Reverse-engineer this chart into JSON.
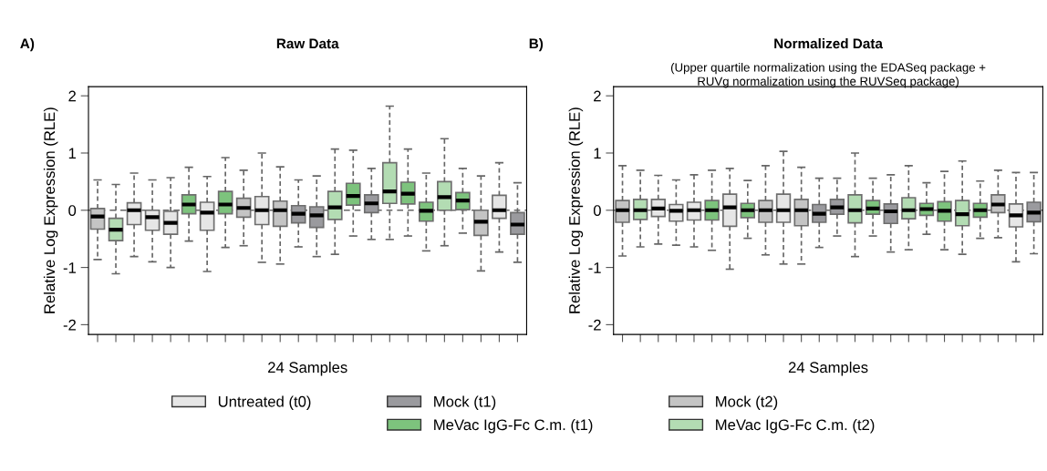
{
  "chart_data": [
    {
      "type": "box",
      "title": "Raw Data",
      "xlabel": "24 Samples",
      "ylabel": "Relative Log Expression (RLE)",
      "annotations": [
        "A)"
      ],
      "categories": [
        null,
        null,
        null,
        null,
        null,
        null,
        null,
        null,
        null,
        null,
        null,
        null,
        null,
        null,
        null,
        null,
        null,
        null,
        null,
        null,
        null,
        null,
        null,
        null
      ],
      "ylim": [
        -2.17,
        2.16
      ],
      "yticks": [
        -2,
        -1,
        0,
        1,
        2
      ],
      "grid": false,
      "legend": "bottom",
      "ref_lines": [
        {
          "axis": "y",
          "value": 0,
          "color": "#666666",
          "line_style": "dashed"
        }
      ],
      "series": [
        {
          "name": "Untreated (t0)",
          "color": "#e6e6e6",
          "boxes": [
            null,
            null,
            {
              "low": -0.81,
              "q1": -0.25,
              "median": 0,
              "q3": 0.13,
              "high": 0.65
            },
            {
              "low": -0.9,
              "q1": -0.35,
              "median": -0.12,
              "q3": 0,
              "high": 0.53
            },
            {
              "low": -1.0,
              "q1": -0.42,
              "median": -0.22,
              "q3": -0.02,
              "high": 0.57
            },
            null,
            {
              "low": -1.07,
              "q1": -0.35,
              "median": -0.04,
              "q3": 0.14,
              "high": 0.59
            },
            null,
            null,
            {
              "low": -0.91,
              "q1": -0.25,
              "median": 0,
              "q3": 0.24,
              "high": 1.0
            },
            null,
            null,
            null,
            null,
            null,
            null,
            null,
            null,
            null,
            null,
            null,
            null,
            {
              "low": -0.73,
              "q1": -0.14,
              "median": 0,
              "q3": 0.26,
              "high": 0.83
            },
            null
          ]
        },
        {
          "name": "Mock (t1)",
          "color": "#9a9a9e",
          "boxes": [
            null,
            null,
            null,
            null,
            null,
            null,
            null,
            null,
            null,
            null,
            null,
            {
              "low": -0.64,
              "q1": -0.22,
              "median": -0.06,
              "q3": 0.08,
              "high": 0.53
            },
            {
              "low": -0.81,
              "q1": -0.3,
              "median": -0.09,
              "q3": 0.06,
              "high": 0.6
            },
            null,
            null,
            {
              "low": -0.51,
              "q1": -0.04,
              "median": 0.12,
              "q3": 0.27,
              "high": 0.73
            },
            null,
            null,
            null,
            null,
            null,
            null,
            null,
            {
              "low": -0.91,
              "q1": -0.42,
              "median": -0.25,
              "q3": -0.04,
              "high": 0.48
            }
          ]
        },
        {
          "name": "Mock (t2)",
          "color": "#c4c4c4",
          "boxes": [
            {
              "low": -0.86,
              "q1": -0.33,
              "median": -0.11,
              "q3": 0.03,
              "high": 0.53
            },
            null,
            null,
            null,
            null,
            null,
            null,
            null,
            {
              "low": -0.62,
              "q1": -0.12,
              "median": 0.04,
              "q3": 0.21,
              "high": 0.7
            },
            null,
            {
              "low": -0.94,
              "q1": -0.28,
              "median": 0,
              "q3": 0.16,
              "high": 0.76
            },
            null,
            null,
            null,
            null,
            null,
            null,
            null,
            null,
            null,
            null,
            {
              "low": -1.06,
              "q1": -0.44,
              "median": -0.2,
              "q3": 0,
              "high": 0.6
            },
            null,
            null
          ]
        },
        {
          "name": "MeVac IgG-Fc C.m. (t1)",
          "color": "#7dc37d",
          "boxes": [
            null,
            null,
            null,
            null,
            null,
            {
              "low": -0.54,
              "q1": -0.06,
              "median": 0.1,
              "q3": 0.27,
              "high": 0.75
            },
            null,
            {
              "low": -0.65,
              "q1": -0.06,
              "median": 0.1,
              "q3": 0.33,
              "high": 0.92
            },
            null,
            null,
            null,
            null,
            null,
            null,
            {
              "low": -0.45,
              "q1": 0.09,
              "median": 0.25,
              "q3": 0.47,
              "high": 1.05
            },
            null,
            null,
            {
              "low": -0.45,
              "q1": 0.11,
              "median": 0.29,
              "q3": 0.49,
              "high": 1.07
            },
            {
              "low": -0.71,
              "q1": -0.19,
              "median": -0.01,
              "q3": 0.14,
              "high": 0.65
            },
            null,
            {
              "low": -0.4,
              "q1": 0.01,
              "median": 0.17,
              "q3": 0.31,
              "high": 0.73
            },
            null,
            null,
            null
          ]
        },
        {
          "name": "MeVac IgG-Fc C.m. (t2)",
          "color": "#b3dcb3",
          "boxes": [
            null,
            {
              "low": -1.11,
              "q1": -0.53,
              "median": -0.34,
              "q3": -0.14,
              "high": 0.45
            },
            null,
            null,
            null,
            null,
            null,
            null,
            null,
            null,
            null,
            null,
            null,
            {
              "low": -0.77,
              "q1": -0.16,
              "median": 0.05,
              "q3": 0.33,
              "high": 1.07
            },
            null,
            null,
            {
              "low": -0.51,
              "q1": 0.12,
              "median": 0.33,
              "q3": 0.83,
              "high": 1.82
            },
            null,
            null,
            {
              "low": -0.62,
              "q1": 0,
              "median": 0.23,
              "q3": 0.5,
              "high": 1.25
            },
            null,
            null,
            null,
            null
          ]
        }
      ]
    },
    {
      "type": "box",
      "title": "Normalized Data",
      "subtitle": "(Upper quartile normalization using the EDASeq package +\nRUVg normalization using the RUVSeq package)",
      "xlabel": "24 Samples",
      "ylabel": "Relative Log Expression (RLE)",
      "annotations": [
        "B)"
      ],
      "categories": [
        null,
        null,
        null,
        null,
        null,
        null,
        null,
        null,
        null,
        null,
        null,
        null,
        null,
        null,
        null,
        null,
        null,
        null,
        null,
        null,
        null,
        null,
        null,
        null
      ],
      "ylim": [
        -2.17,
        2.16
      ],
      "yticks": [
        -2,
        -1,
        0,
        1,
        2
      ],
      "grid": false,
      "ref_lines": [
        {
          "axis": "y",
          "value": 0,
          "color": "#666666",
          "line_style": "dashed"
        }
      ],
      "series": [
        {
          "color": "#e6e6e6",
          "boxes": [
            null,
            null,
            {
              "low": -0.59,
              "q1": -0.11,
              "median": 0.03,
              "q3": 0.19,
              "high": 0.61
            },
            {
              "low": -0.61,
              "q1": -0.19,
              "median": -0.01,
              "q3": 0.1,
              "high": 0.53
            },
            {
              "low": -0.64,
              "q1": -0.17,
              "median": 0,
              "q3": 0.14,
              "high": 0.62
            },
            null,
            {
              "low": -1.03,
              "q1": -0.28,
              "median": 0.05,
              "q3": 0.28,
              "high": 0.73
            },
            null,
            null,
            {
              "low": -0.94,
              "q1": -0.21,
              "median": 0,
              "q3": 0.28,
              "high": 1.03
            },
            null,
            null,
            null,
            null,
            null,
            null,
            null,
            null,
            null,
            null,
            null,
            null,
            {
              "low": -0.9,
              "q1": -0.29,
              "median": -0.09,
              "q3": 0.11,
              "high": 0.66
            },
            null
          ]
        },
        {
          "color": "#9a9a9e",
          "boxes": [
            null,
            null,
            null,
            null,
            null,
            null,
            null,
            null,
            null,
            null,
            null,
            {
              "low": -0.65,
              "q1": -0.21,
              "median": -0.06,
              "q3": 0.1,
              "high": 0.56
            },
            {
              "low": -0.45,
              "q1": -0.07,
              "median": 0.05,
              "q3": 0.19,
              "high": 0.56
            },
            null,
            null,
            {
              "low": -0.73,
              "q1": -0.23,
              "median": -0.02,
              "q3": 0.11,
              "high": 0.62
            },
            null,
            null,
            null,
            null,
            null,
            null,
            null,
            {
              "low": -0.76,
              "q1": -0.2,
              "median": -0.04,
              "q3": 0.14,
              "high": 0.66
            }
          ]
        },
        {
          "color": "#c4c4c4",
          "boxes": [
            {
              "low": -0.8,
              "q1": -0.21,
              "median": 0,
              "q3": 0.17,
              "high": 0.78
            },
            null,
            null,
            null,
            null,
            null,
            null,
            null,
            {
              "low": -0.78,
              "q1": -0.21,
              "median": 0,
              "q3": 0.17,
              "high": 0.78
            },
            null,
            {
              "low": -0.94,
              "q1": -0.27,
              "median": 0,
              "q3": 0.19,
              "high": 0.75
            },
            null,
            null,
            null,
            null,
            null,
            null,
            null,
            null,
            null,
            null,
            {
              "low": -0.48,
              "q1": -0.04,
              "median": 0.1,
              "q3": 0.27,
              "high": 0.7
            },
            null,
            null
          ]
        },
        {
          "color": "#7dc37d",
          "boxes": [
            null,
            null,
            null,
            null,
            null,
            {
              "low": -0.7,
              "q1": -0.17,
              "median": 0,
              "q3": 0.17,
              "high": 0.7
            },
            null,
            {
              "low": -0.49,
              "q1": -0.13,
              "median": 0,
              "q3": 0.12,
              "high": 0.52
            },
            null,
            null,
            null,
            null,
            null,
            null,
            {
              "low": -0.45,
              "q1": -0.07,
              "median": 0.03,
              "q3": 0.17,
              "high": 0.56
            },
            null,
            null,
            {
              "low": -0.42,
              "q1": -0.09,
              "median": 0.02,
              "q3": 0.12,
              "high": 0.48
            },
            {
              "low": -0.69,
              "q1": -0.19,
              "median": -0.01,
              "q3": 0.15,
              "high": 0.68
            },
            null,
            {
              "low": -0.49,
              "q1": -0.12,
              "median": 0,
              "q3": 0.12,
              "high": 0.51
            },
            null,
            null,
            null
          ]
        },
        {
          "color": "#b3dcb3",
          "boxes": [
            null,
            {
              "low": -0.64,
              "q1": -0.16,
              "median": 0,
              "q3": 0.19,
              "high": 0.7
            },
            null,
            null,
            null,
            null,
            null,
            null,
            null,
            null,
            null,
            null,
            null,
            {
              "low": -0.81,
              "q1": -0.22,
              "median": 0,
              "q3": 0.27,
              "high": 1.0
            },
            null,
            null,
            {
              "low": -0.69,
              "q1": -0.15,
              "median": 0,
              "q3": 0.22,
              "high": 0.78
            },
            null,
            null,
            {
              "low": -0.77,
              "q1": -0.27,
              "median": -0.07,
              "q3": 0.17,
              "high": 0.86
            },
            null,
            null,
            null,
            null
          ]
        }
      ]
    }
  ]
}
